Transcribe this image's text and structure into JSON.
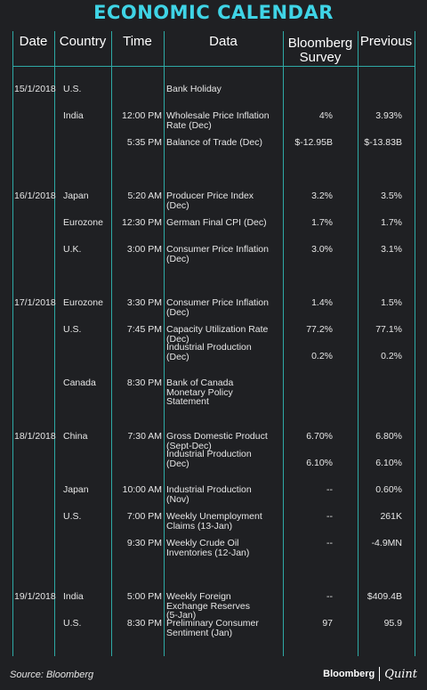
{
  "title": "ECONOMIC CALENDAR",
  "headers": {
    "date": "Date",
    "country": "Country",
    "time": "Time",
    "data": "Data",
    "survey": [
      "Bloomberg",
      "Survey"
    ],
    "previous": "Previous"
  },
  "rows": [
    {
      "date": "15/1/2018",
      "country": "U.S.",
      "time": "",
      "data": [
        "Bank Holiday"
      ],
      "survey": "",
      "previous": ""
    },
    {
      "date": "",
      "country": "India",
      "time": "12:00 PM",
      "data": [
        "Wholesale Price Inflation",
        "Rate (Dec)"
      ],
      "survey": "4%",
      "previous": "3.93%"
    },
    {
      "date": "",
      "country": "",
      "time": "5:35 PM",
      "data": [
        "Balance of Trade (Dec)"
      ],
      "survey": "$-12.95B",
      "previous": "$-13.83B"
    },
    {
      "date": "16/1/2018",
      "country": "Japan",
      "time": "5:20 AM",
      "data": [
        "Producer Price Index",
        "(Dec)"
      ],
      "survey": "3.2%",
      "previous": "3.5%"
    },
    {
      "date": "",
      "country": "Eurozone",
      "time": "12:30 PM",
      "data": [
        "German Final CPI (Dec)"
      ],
      "survey": "1.7%",
      "previous": "1.7%"
    },
    {
      "date": "",
      "country": "U.K.",
      "time": "3:00 PM",
      "data": [
        "Consumer Price Inflation",
        "(Dec)"
      ],
      "survey": "3.0%",
      "previous": "3.1%"
    },
    {
      "date": "17/1/2018",
      "country": "Eurozone",
      "time": "3:30 PM",
      "data": [
        "Consumer Price Inflation",
        "(Dec)"
      ],
      "survey": "1.4%",
      "previous": "1.5%"
    },
    {
      "date": "",
      "country": "U.S.",
      "time": "7:45 PM",
      "data": [
        "Capacity Utilization Rate",
        "(Dec)"
      ],
      "survey": "77.2%",
      "previous": "77.1%"
    },
    {
      "date": "",
      "country": "",
      "time": "",
      "data": [
        "Industrial Production",
        "(Dec)"
      ],
      "survey": "0.2%",
      "previous": "0.2%"
    },
    {
      "date": "",
      "country": "Canada",
      "time": "8:30 PM",
      "data": [
        "Bank of Canada",
        "Monetary Policy",
        "Statement"
      ],
      "survey": "",
      "previous": ""
    },
    {
      "date": "18/1/2018",
      "country": "China",
      "time": "7:30 AM",
      "data": [
        "Gross Domestic Product",
        "(Sept-Dec)"
      ],
      "survey": "6.70%",
      "previous": "6.80%"
    },
    {
      "date": "",
      "country": "",
      "time": "",
      "data": [
        "Industrial Production",
        "(Dec)"
      ],
      "survey": "6.10%",
      "previous": "6.10%"
    },
    {
      "date": "",
      "country": "Japan",
      "time": "10:00 AM",
      "data": [
        "Industrial Production",
        "(Nov)"
      ],
      "survey": "--",
      "previous": "0.60%"
    },
    {
      "date": "",
      "country": "U.S.",
      "time": "7:00 PM",
      "data": [
        "Weekly Unemployment",
        "Claims (13-Jan)"
      ],
      "survey": "--",
      "previous": "261K"
    },
    {
      "date": "",
      "country": "",
      "time": "9:30 PM",
      "data": [
        "Weekly Crude Oil",
        "Inventories (12-Jan)"
      ],
      "survey": "--",
      "previous": "-4.9MN"
    },
    {
      "date": "19/1/2018",
      "country": "India",
      "time": "5:00 PM",
      "data": [
        "Weekly Foreign",
        "Exchange Reserves",
        "(5-Jan)"
      ],
      "survey": "--",
      "previous": "$409.4B"
    },
    {
      "date": "",
      "country": "U.S.",
      "time": "8:30 PM",
      "data": [
        "Preliminary Consumer",
        "Sentiment (Jan)"
      ],
      "survey": "97",
      "previous": "95.9"
    }
  ],
  "footer": {
    "source": "Source: Bloomberg",
    "brand1": "Bloomberg",
    "brand2": "Quint"
  }
}
